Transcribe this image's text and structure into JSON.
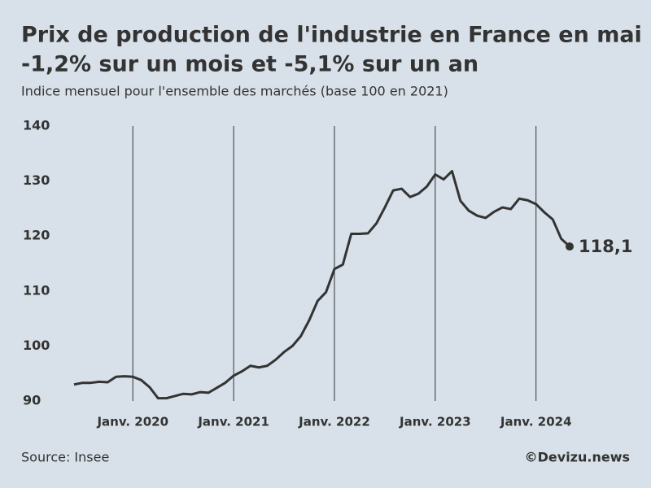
{
  "chart_data": {
    "type": "line",
    "title": "Prix de production de l'industrie en France en mai :",
    "title_line2": "-1,2% sur un mois et -5,1% sur un an",
    "subtitle": "Indice mensuel pour l'ensemble des marchés (base 100 en 2021)",
    "source": "Source: Insee",
    "credit": "©Devizu.news",
    "x": [
      "2019-06",
      "2019-07",
      "2019-08",
      "2019-09",
      "2019-10",
      "2019-11",
      "2019-12",
      "2020-01",
      "2020-02",
      "2020-03",
      "2020-04",
      "2020-05",
      "2020-06",
      "2020-07",
      "2020-08",
      "2020-09",
      "2020-10",
      "2020-11",
      "2020-12",
      "2021-01",
      "2021-02",
      "2021-03",
      "2021-04",
      "2021-05",
      "2021-06",
      "2021-07",
      "2021-08",
      "2021-09",
      "2021-10",
      "2021-11",
      "2021-12",
      "2022-01",
      "2022-02",
      "2022-03",
      "2022-04",
      "2022-05",
      "2022-06",
      "2022-07",
      "2022-08",
      "2022-09",
      "2022-10",
      "2022-11",
      "2022-12",
      "2023-01",
      "2023-02",
      "2023-03",
      "2023-04",
      "2023-05",
      "2023-06",
      "2023-07",
      "2023-08",
      "2023-09",
      "2023-10",
      "2023-11",
      "2023-12",
      "2024-01",
      "2024-02",
      "2024-03",
      "2024-04",
      "2024-05"
    ],
    "series": [
      {
        "color": "#333333",
        "values": [
          93.0,
          93.3,
          93.3,
          93.5,
          93.4,
          94.4,
          94.5,
          94.4,
          93.8,
          92.5,
          90.5,
          90.5,
          90.9,
          91.3,
          91.2,
          91.6,
          91.5,
          92.4,
          93.3,
          94.6,
          95.4,
          96.4,
          96.1,
          96.4,
          97.5,
          98.9,
          100.0,
          101.8,
          104.7,
          108.2,
          109.8,
          114.0,
          114.8,
          120.4,
          120.4,
          120.5,
          122.3,
          125.2,
          128.3,
          128.6,
          127.1,
          127.7,
          129.0,
          131.2,
          130.3,
          131.8,
          126.4,
          124.6,
          123.7,
          123.3,
          124.4,
          125.2,
          124.9,
          126.8,
          126.5,
          125.8,
          124.3,
          123.0,
          119.5,
          118.1
        ],
        "value_labels": [
          null,
          null,
          null,
          null,
          null,
          null,
          null,
          null,
          null,
          null,
          null,
          null,
          null,
          null,
          null,
          null,
          null,
          null,
          null,
          null,
          null,
          null,
          null,
          null,
          null,
          null,
          null,
          null,
          null,
          null,
          null,
          null,
          null,
          null,
          null,
          null,
          null,
          null,
          null,
          null,
          null,
          null,
          null,
          null,
          null,
          null,
          null,
          null,
          null,
          null,
          null,
          null,
          null,
          null,
          null,
          null,
          null,
          null,
          null,
          "118,1"
        ]
      }
    ],
    "xlim": [
      "2019-06",
      "2024-05"
    ],
    "xticks": [
      {
        "value": "2020-01",
        "label": "Janv. 2020"
      },
      {
        "value": "2021-01",
        "label": "Janv. 2021"
      },
      {
        "value": "2022-01",
        "label": "Janv. 2022"
      },
      {
        "value": "2023-01",
        "label": "Janv. 2023"
      },
      {
        "value": "2024-01",
        "label": "Janv. 2024"
      }
    ],
    "ylim": [
      90,
      140
    ],
    "yticks": [
      90,
      100,
      110,
      120,
      130,
      140
    ],
    "grid": true
  }
}
